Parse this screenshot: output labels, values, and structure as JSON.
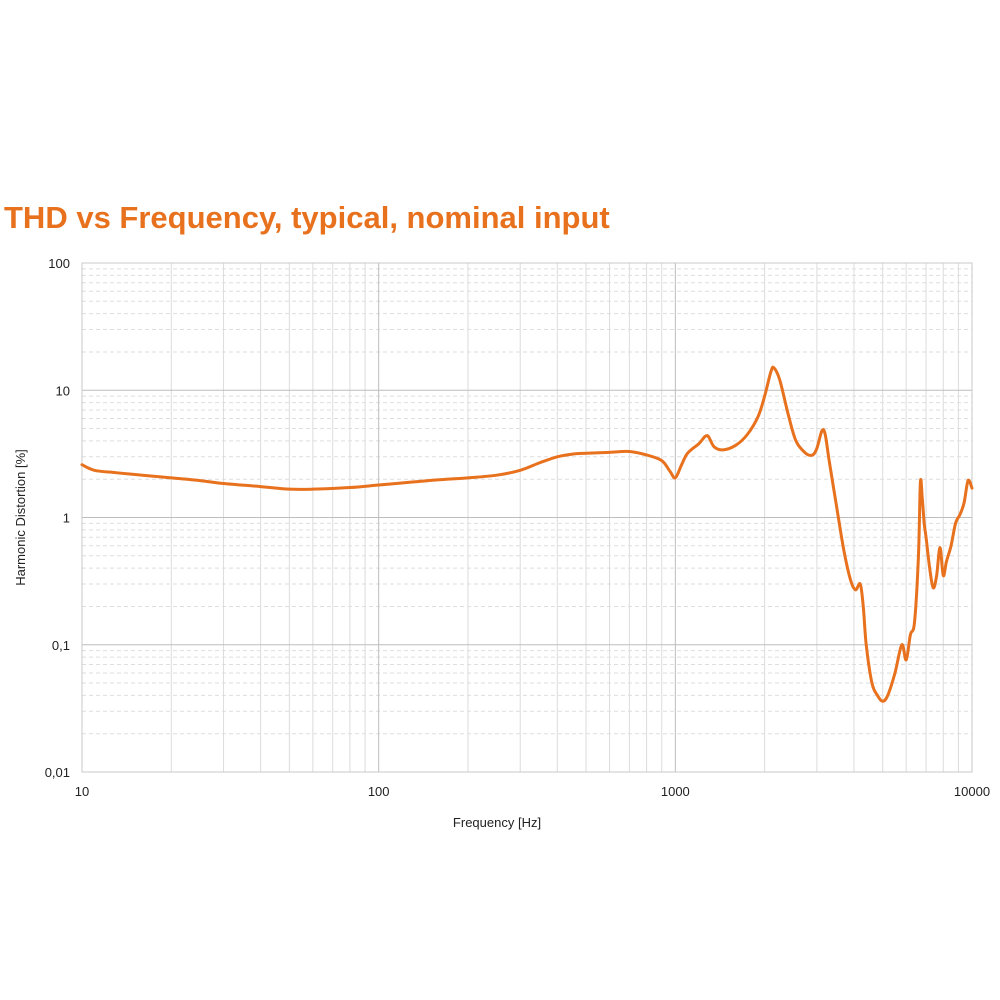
{
  "chart_data": {
    "type": "line",
    "title": "THD vs Frequency, typical, nominal input",
    "xlabel": "Frequency [Hz]",
    "ylabel": "Harmonic Distortion [%]",
    "xscale": "log",
    "yscale": "log",
    "xlim": [
      10,
      10000
    ],
    "ylim": [
      0.01,
      100
    ],
    "x_tick_labels": [
      "10",
      "100",
      "1000",
      "10000"
    ],
    "y_tick_labels": [
      "100",
      "10",
      "1",
      "0,1",
      "0,01"
    ],
    "grid": true,
    "line_color": "#e8711e",
    "series": [
      {
        "x": [
          10,
          11,
          13,
          16,
          20,
          25,
          30,
          40,
          50,
          60,
          80,
          100,
          130,
          160,
          200,
          250,
          300,
          350,
          400,
          450,
          500,
          600,
          700,
          800,
          900,
          960,
          1000,
          1050,
          1100,
          1200,
          1280,
          1350,
          1450,
          1600,
          1750,
          1900,
          2000,
          2100,
          2150,
          2250,
          2400,
          2550,
          2750,
          2900,
          3000,
          3120,
          3200,
          3300,
          3500,
          3700,
          3900,
          4050,
          4200,
          4300,
          4400,
          4600,
          4800,
          5000,
          5200,
          5500,
          5800,
          6000,
          6200,
          6400,
          6600,
          6700,
          6800,
          6900,
          7000,
          7200,
          7400,
          7600,
          7800,
          8000,
          8200,
          8500,
          8800,
          9100,
          9400,
          9700,
          10000
        ],
        "y": [
          2.6,
          2.35,
          2.25,
          2.15,
          2.05,
          1.95,
          1.85,
          1.75,
          1.67,
          1.67,
          1.72,
          1.8,
          1.9,
          1.98,
          2.05,
          2.15,
          2.35,
          2.7,
          3.0,
          3.15,
          3.2,
          3.25,
          3.3,
          3.1,
          2.8,
          2.3,
          2.05,
          2.6,
          3.2,
          3.8,
          4.4,
          3.6,
          3.4,
          3.7,
          4.5,
          6.2,
          9.0,
          14.0,
          15.0,
          12.0,
          6.5,
          4.0,
          3.2,
          3.1,
          3.5,
          4.8,
          4.5,
          2.8,
          1.2,
          0.55,
          0.32,
          0.27,
          0.3,
          0.2,
          0.1,
          0.05,
          0.04,
          0.036,
          0.04,
          0.06,
          0.1,
          0.076,
          0.12,
          0.15,
          0.5,
          1.9,
          1.4,
          0.9,
          0.7,
          0.4,
          0.28,
          0.35,
          0.58,
          0.35,
          0.45,
          0.6,
          0.9,
          1.05,
          1.3,
          1.95,
          1.7
        ]
      }
    ]
  }
}
